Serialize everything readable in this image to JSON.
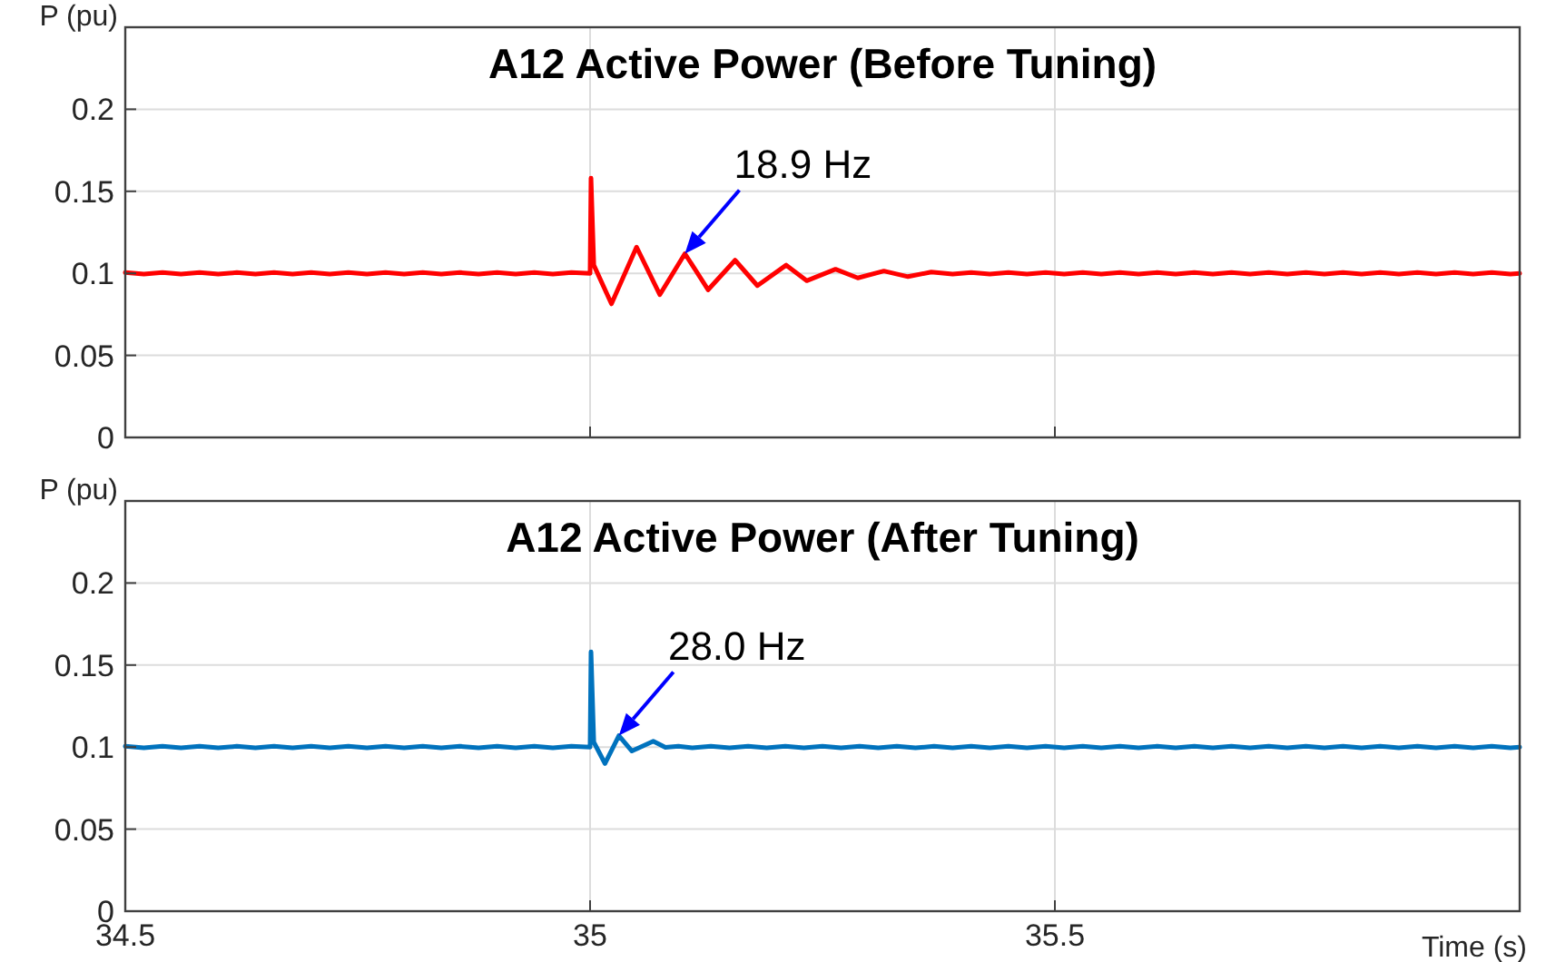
{
  "chart_data": [
    {
      "type": "line",
      "title": "A12 Active Power (Before Tuning)",
      "ylabel": "P (pu)",
      "annotations": [
        {
          "text": "18.9 Hz",
          "x": 35.102,
          "y": 0.112
        }
      ],
      "xlim": [
        34.5,
        36
      ],
      "ylim": [
        0,
        0.25
      ],
      "xticks": [
        34.5,
        35,
        35.5
      ],
      "yticks": [
        0,
        0.05,
        0.1,
        0.15,
        0.2
      ],
      "grid": true,
      "tick_labels": "y",
      "series": [
        {
          "color": "#ff0000",
          "x": [
            34.5,
            34.52,
            34.54,
            34.56,
            34.58,
            34.6,
            34.62,
            34.64,
            34.66,
            34.68,
            34.7,
            34.72,
            34.74,
            34.76,
            34.78,
            34.8,
            34.82,
            34.84,
            34.86,
            34.88,
            34.9,
            34.92,
            34.94,
            34.96,
            34.98,
            35.0,
            35.001,
            35.004,
            35.023,
            35.05,
            35.075,
            35.102,
            35.127,
            35.156,
            35.18,
            35.211,
            35.233,
            35.264,
            35.288,
            35.316,
            35.342,
            35.367,
            35.39,
            35.41,
            35.43,
            35.45,
            35.47,
            35.49,
            35.51,
            35.53,
            35.55,
            35.57,
            35.59,
            35.61,
            35.63,
            35.65,
            35.67,
            35.69,
            35.71,
            35.73,
            35.75,
            35.77,
            35.79,
            35.81,
            35.83,
            35.85,
            35.87,
            35.89,
            35.91,
            35.93,
            35.95,
            35.97,
            35.99,
            36
          ],
          "values": [
            0.1005,
            0.0995,
            0.1005,
            0.0995,
            0.1005,
            0.0995,
            0.1005,
            0.0995,
            0.1005,
            0.0995,
            0.1005,
            0.0995,
            0.1005,
            0.0995,
            0.1005,
            0.0995,
            0.1005,
            0.0995,
            0.1005,
            0.0995,
            0.1005,
            0.0995,
            0.1005,
            0.0995,
            0.1005,
            0.1,
            0.158,
            0.105,
            0.0814,
            0.116,
            0.087,
            0.112,
            0.09,
            0.108,
            0.0925,
            0.105,
            0.0955,
            0.1025,
            0.0972,
            0.1014,
            0.098,
            0.1008,
            0.0995,
            0.1005,
            0.0995,
            0.1005,
            0.0995,
            0.1005,
            0.0995,
            0.1005,
            0.0995,
            0.1005,
            0.0995,
            0.1005,
            0.0995,
            0.1005,
            0.0995,
            0.1005,
            0.0995,
            0.1005,
            0.0995,
            0.1005,
            0.0995,
            0.1005,
            0.0995,
            0.1005,
            0.0995,
            0.1005,
            0.0995,
            0.1005,
            0.0995,
            0.1005,
            0.0995,
            0.1
          ]
        }
      ]
    },
    {
      "type": "line",
      "title": "A12 Active Power (After Tuning)",
      "ylabel": "P (pu)",
      "xlabel": "Time (s)",
      "annotations": [
        {
          "text": "28.0 Hz",
          "x": 35.031,
          "y": 0.107
        }
      ],
      "xlim": [
        34.5,
        36
      ],
      "ylim": [
        0,
        0.25
      ],
      "xticks": [
        34.5,
        35,
        35.5
      ],
      "yticks": [
        0,
        0.05,
        0.1,
        0.15,
        0.2
      ],
      "grid": true,
      "series": [
        {
          "color": "#0072bd",
          "x": [
            34.5,
            34.52,
            34.54,
            34.56,
            34.58,
            34.6,
            34.62,
            34.64,
            34.66,
            34.68,
            34.7,
            34.72,
            34.74,
            34.76,
            34.78,
            34.8,
            34.82,
            34.84,
            34.86,
            34.88,
            34.9,
            34.92,
            34.94,
            34.96,
            34.98,
            35.0,
            35.001,
            35.004,
            35.016,
            35.031,
            35.045,
            35.068,
            35.081,
            35.095,
            35.11,
            35.13,
            35.15,
            35.17,
            35.19,
            35.21,
            35.23,
            35.25,
            35.27,
            35.29,
            35.31,
            35.33,
            35.35,
            35.37,
            35.39,
            35.41,
            35.43,
            35.45,
            35.47,
            35.49,
            35.51,
            35.53,
            35.55,
            35.57,
            35.59,
            35.61,
            35.63,
            35.65,
            35.67,
            35.69,
            35.71,
            35.73,
            35.75,
            35.77,
            35.79,
            35.81,
            35.83,
            35.85,
            35.87,
            35.89,
            35.91,
            35.93,
            35.95,
            35.97,
            35.99,
            36
          ],
          "values": [
            0.1005,
            0.0995,
            0.1005,
            0.0995,
            0.1005,
            0.0995,
            0.1005,
            0.0995,
            0.1005,
            0.0995,
            0.1005,
            0.0995,
            0.1005,
            0.0995,
            0.1005,
            0.0995,
            0.1005,
            0.0995,
            0.1005,
            0.0995,
            0.1005,
            0.0995,
            0.1005,
            0.0995,
            0.1005,
            0.1,
            0.158,
            0.103,
            0.09,
            0.107,
            0.0976,
            0.1036,
            0.0998,
            0.1005,
            0.0995,
            0.1005,
            0.0995,
            0.1005,
            0.0995,
            0.1005,
            0.0995,
            0.1005,
            0.0995,
            0.1005,
            0.0995,
            0.1005,
            0.0995,
            0.1005,
            0.0995,
            0.1005,
            0.0995,
            0.1005,
            0.0995,
            0.1005,
            0.0995,
            0.1005,
            0.0995,
            0.1005,
            0.0995,
            0.1005,
            0.0995,
            0.1005,
            0.0995,
            0.1005,
            0.0995,
            0.1005,
            0.0995,
            0.1005,
            0.0995,
            0.1005,
            0.0995,
            0.1005,
            0.0995,
            0.1005,
            0.0995,
            0.1005,
            0.0995,
            0.1005,
            0.0995,
            0.1
          ]
        }
      ]
    }
  ]
}
